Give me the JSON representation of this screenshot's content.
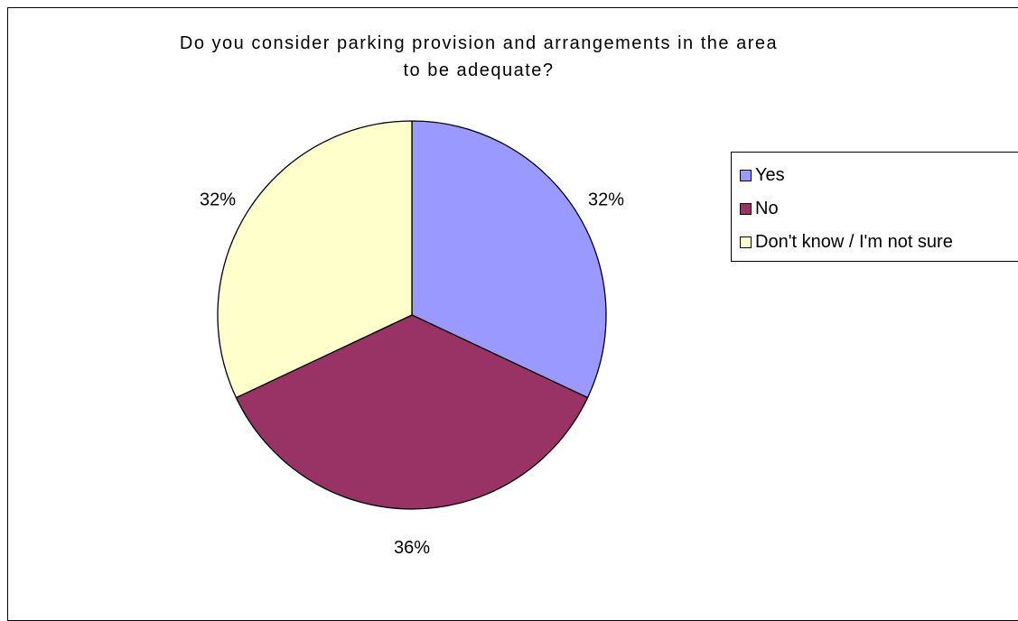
{
  "chart_data": {
    "type": "pie",
    "title_lines": [
      "Do you consider parking provision and arrangements in the area",
      "to be adequate?"
    ],
    "categories": [
      "Yes",
      "No",
      "Don't know / I'm not sure"
    ],
    "values": [
      32,
      36,
      32
    ],
    "value_labels": [
      "32%",
      "36%",
      "32%"
    ],
    "colors": [
      "#9999ff",
      "#993366",
      "#ffffcc"
    ],
    "legend": {
      "placement": "right",
      "entries": [
        "Yes",
        "No",
        "Don't know / I'm not sure"
      ]
    },
    "start_angle_deg": 0,
    "direction": "clockwise"
  },
  "colors": {
    "background": "#ffffff",
    "border": "#000000"
  }
}
